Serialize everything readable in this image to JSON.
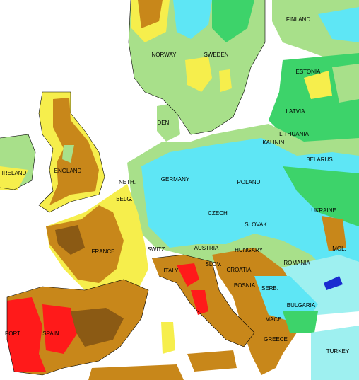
{
  "labels": [
    "FINLAND",
    "NORWAY",
    "SWEDEN",
    "ESTONIA",
    "LATVIA",
    "DEN.",
    "LITHUANIA",
    "KALININ.",
    "IRELAND",
    "ENGLAND",
    "NETH.",
    "BELG.",
    "GERMANY",
    "POLAND",
    "BELARUS",
    "CZECH",
    "SLOVAK",
    "UKRAINE",
    "FRANCE",
    "SWITZ.",
    "AUSTRIA",
    "HUNGARY",
    "SLOV.",
    "CROATIA",
    "MOL.",
    "ROMANIA",
    "BOSNIA",
    "SERB.",
    "ITALY",
    "BULGARIA",
    "MACE.",
    "GREECE",
    "PORT",
    "SPAIN",
    "TURKEY"
  ]
}
